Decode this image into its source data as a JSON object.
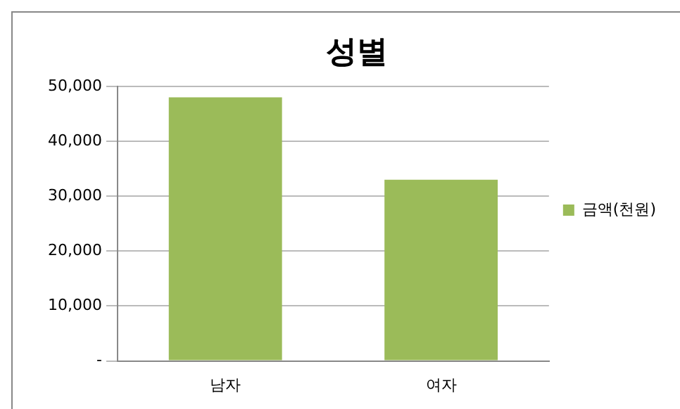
{
  "chart_data": {
    "type": "bar",
    "title": "성별",
    "categories": [
      "남자",
      "여자"
    ],
    "series": [
      {
        "name": "금액(천원)",
        "color": "#9bbb59",
        "values": [
          48000,
          33000
        ]
      }
    ],
    "ylim": [
      0,
      50000
    ],
    "yticks": [
      {
        "value": 0,
        "label": "-"
      },
      {
        "value": 10000,
        "label": "10,000"
      },
      {
        "value": 20000,
        "label": "20,000"
      },
      {
        "value": 30000,
        "label": "30,000"
      },
      {
        "value": 40000,
        "label": "40,000"
      },
      {
        "value": 50000,
        "label": "50,000"
      }
    ],
    "grid": "y",
    "legend": "right"
  }
}
